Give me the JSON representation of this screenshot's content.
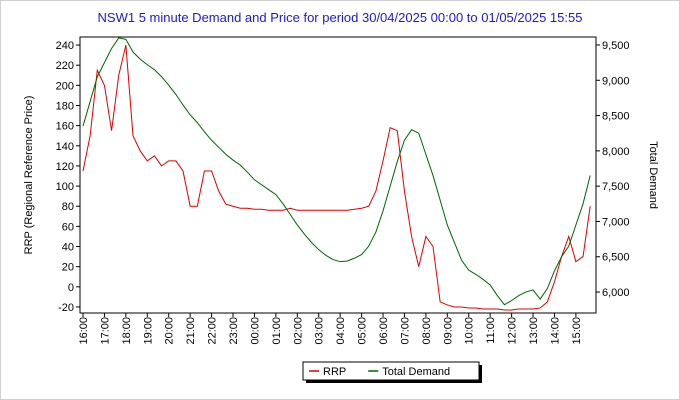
{
  "chart_data": {
    "type": "line",
    "title": "NSW1 5 minute Demand and Price for period 30/04/2025 00:00 to 01/05/2025 15:55",
    "y_label": "RRP (Regional Reference Price)",
    "y2_label": "Total Demand",
    "categories": [
      "16:00",
      null,
      null,
      "17:00",
      null,
      null,
      "18:00",
      null,
      null,
      "19:00",
      null,
      null,
      "20:00",
      null,
      null,
      "21:00",
      null,
      null,
      "22:00",
      null,
      null,
      "23:00",
      null,
      null,
      "00:00",
      null,
      null,
      "01:00",
      null,
      null,
      "02:00",
      null,
      null,
      "03:00",
      null,
      null,
      "04:00",
      null,
      null,
      "05:00",
      null,
      null,
      "06:00",
      null,
      null,
      "07:00",
      null,
      null,
      "08:00",
      null,
      null,
      "09:00",
      null,
      null,
      "10:00",
      null,
      null,
      "11:00",
      null,
      null,
      "12:00",
      null,
      null,
      "13:00",
      null,
      null,
      "14:00",
      null,
      null,
      "15:00",
      null,
      null
    ],
    "series": [
      {
        "name": "RRP",
        "color": "#dd0000",
        "axis": "y",
        "values": [
          115,
          150,
          215,
          200,
          155,
          210,
          240,
          150,
          135,
          125,
          130,
          120,
          125,
          125,
          115,
          80,
          80,
          115,
          115,
          95,
          82,
          80,
          78,
          78,
          77,
          77,
          76,
          76,
          76,
          78,
          76,
          76,
          76,
          76,
          76,
          76,
          76,
          76,
          77,
          78,
          80,
          95,
          125,
          158,
          155,
          95,
          50,
          20,
          50,
          40,
          -15,
          -18,
          -20,
          -20,
          -21,
          -21,
          -22,
          -22,
          -22,
          -23,
          -23,
          -22,
          -22,
          -22,
          -21,
          -15,
          5,
          30,
          50,
          25,
          30,
          80
        ]
      },
      {
        "name": "Total Demand",
        "color": "#006400",
        "axis": "y2",
        "values": [
          8350,
          8700,
          9050,
          9250,
          9450,
          9600,
          9580,
          9400,
          9300,
          9220,
          9150,
          9050,
          8930,
          8800,
          8650,
          8510,
          8400,
          8270,
          8150,
          8050,
          7950,
          7870,
          7800,
          7700,
          7590,
          7520,
          7450,
          7380,
          7250,
          7100,
          6950,
          6820,
          6700,
          6600,
          6520,
          6460,
          6430,
          6440,
          6480,
          6530,
          6650,
          6850,
          7150,
          7500,
          7850,
          8150,
          8300,
          8250,
          7950,
          7650,
          7300,
          6950,
          6700,
          6450,
          6310,
          6250,
          6180,
          6100,
          5950,
          5820,
          5880,
          5950,
          6000,
          6030,
          5900,
          6050,
          6300,
          6500,
          6650,
          6950,
          7250,
          7650
        ]
      }
    ],
    "ylim": [
      -26,
      248
    ],
    "yticks": [
      -20,
      0,
      20,
      40,
      60,
      80,
      100,
      120,
      140,
      160,
      180,
      200,
      220,
      240
    ],
    "y2lim": [
      5703,
      9613
    ],
    "y2ticks": [
      {
        "value": 6000,
        "label": "6,000"
      },
      {
        "value": 6500,
        "label": "6,500"
      },
      {
        "value": 7000,
        "label": "7,000"
      },
      {
        "value": 7500,
        "label": "7,500"
      },
      {
        "value": 8000,
        "label": "8,000"
      },
      {
        "value": 8500,
        "label": "8,500"
      },
      {
        "value": 9000,
        "label": "9,000"
      },
      {
        "value": 9500,
        "label": "9,500"
      }
    ],
    "legend": "bottom"
  }
}
